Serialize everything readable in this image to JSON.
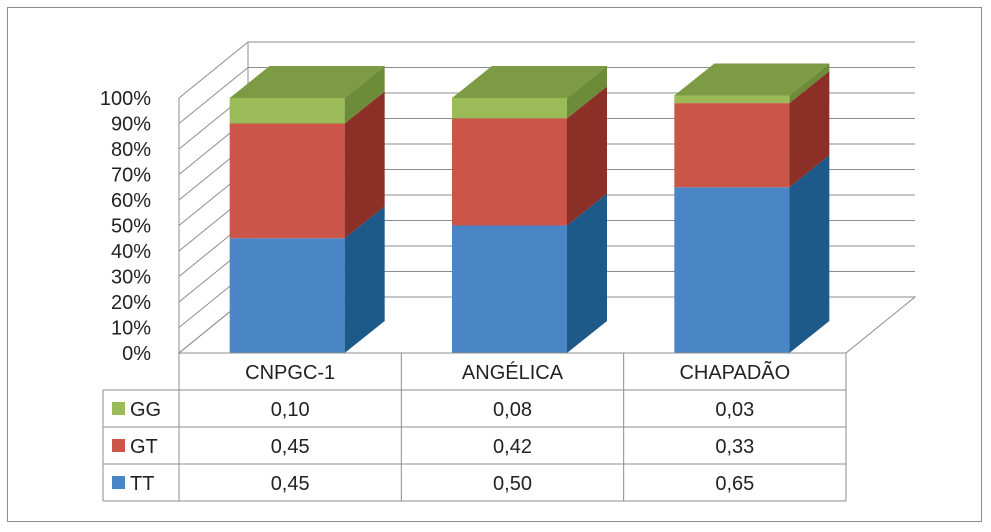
{
  "chart_data": {
    "type": "bar",
    "stacked": "percent",
    "three_d": true,
    "title": "",
    "xlabel": "",
    "ylabel": "",
    "ylim": [
      0,
      1
    ],
    "y_ticks": [
      "0%",
      "10%",
      "20%",
      "30%",
      "40%",
      "50%",
      "60%",
      "70%",
      "80%",
      "90%",
      "100%"
    ],
    "categories": [
      "CNPGC-1",
      "ANGÉLICA",
      "CHAPADÃO"
    ],
    "series": [
      {
        "name": "TT",
        "values": [
          0.45,
          0.5,
          0.65
        ],
        "labels": [
          "0,45",
          "0,50",
          "0,65"
        ],
        "color": "#4a86c5",
        "side": "#1d5a8a",
        "top": "#6f9fd2"
      },
      {
        "name": "GT",
        "values": [
          0.45,
          0.42,
          0.33
        ],
        "labels": [
          "0,45",
          "0,42",
          "0,33"
        ],
        "color": "#cc5549",
        "side": "#8c2f26",
        "top": "#d8796f"
      },
      {
        "name": "GG",
        "values": [
          0.1,
          0.08,
          0.03
        ],
        "labels": [
          "0,10",
          "0,08",
          "0,03"
        ],
        "color": "#9bbb59",
        "side": "#6d8c3a",
        "top": "#7d9a45"
      }
    ],
    "table_row_order": [
      "GG",
      "GT",
      "TT"
    ],
    "grid": true,
    "legend": "data-table"
  }
}
